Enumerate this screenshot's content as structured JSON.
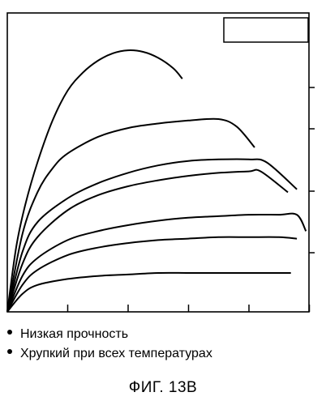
{
  "chart_data": {
    "type": "line",
    "title": "",
    "xlabel": "",
    "ylabel": "",
    "x_ticks": 6,
    "y_ticks": 4,
    "grid": false,
    "legend": "top-right, empty box",
    "series": [
      {
        "x": [
          0,
          0.03,
          0.06,
          0.1,
          0.15,
          0.2,
          0.25,
          0.3,
          0.35,
          0.4,
          0.45,
          0.5,
          0.55,
          0.58
        ],
        "y": [
          0,
          0.22,
          0.36,
          0.5,
          0.64,
          0.74,
          0.8,
          0.84,
          0.865,
          0.875,
          0.87,
          0.85,
          0.815,
          0.78
        ]
      },
      {
        "x": [
          0,
          0.05,
          0.1,
          0.15,
          0.2,
          0.3,
          0.4,
          0.5,
          0.6,
          0.7,
          0.76,
          0.82
        ],
        "y": [
          0,
          0.26,
          0.4,
          0.48,
          0.53,
          0.585,
          0.615,
          0.63,
          0.64,
          0.645,
          0.62,
          0.55
        ]
      },
      {
        "x": [
          0,
          0.05,
          0.1,
          0.2,
          0.3,
          0.4,
          0.5,
          0.6,
          0.7,
          0.8,
          0.86,
          0.96
        ],
        "y": [
          0,
          0.2,
          0.3,
          0.38,
          0.43,
          0.465,
          0.49,
          0.505,
          0.51,
          0.51,
          0.5,
          0.41
        ]
      },
      {
        "x": [
          0,
          0.05,
          0.1,
          0.2,
          0.3,
          0.4,
          0.5,
          0.6,
          0.7,
          0.8,
          0.84,
          0.93
        ],
        "y": [
          0,
          0.16,
          0.25,
          0.34,
          0.39,
          0.42,
          0.44,
          0.455,
          0.465,
          0.47,
          0.47,
          0.4
        ]
      },
      {
        "x": [
          0,
          0.05,
          0.1,
          0.2,
          0.3,
          0.4,
          0.5,
          0.6,
          0.7,
          0.8,
          0.9,
          0.96,
          0.99
        ],
        "y": [
          0,
          0.12,
          0.18,
          0.24,
          0.27,
          0.29,
          0.305,
          0.315,
          0.32,
          0.325,
          0.325,
          0.325,
          0.27
        ]
      },
      {
        "x": [
          0,
          0.05,
          0.1,
          0.2,
          0.3,
          0.4,
          0.5,
          0.6,
          0.7,
          0.8,
          0.9,
          0.96
        ],
        "y": [
          0,
          0.09,
          0.14,
          0.19,
          0.215,
          0.23,
          0.24,
          0.245,
          0.25,
          0.25,
          0.25,
          0.245
        ]
      },
      {
        "x": [
          0,
          0.05,
          0.1,
          0.2,
          0.3,
          0.4,
          0.5,
          0.6,
          0.7,
          0.8,
          0.9,
          0.94
        ],
        "y": [
          0,
          0.06,
          0.09,
          0.11,
          0.12,
          0.125,
          0.13,
          0.13,
          0.13,
          0.13,
          0.13,
          0.13
        ]
      }
    ]
  },
  "notes": [
    "Низкая прочность",
    "Хрупкий при всех температурах"
  ],
  "caption": "ФИГ. 13В"
}
